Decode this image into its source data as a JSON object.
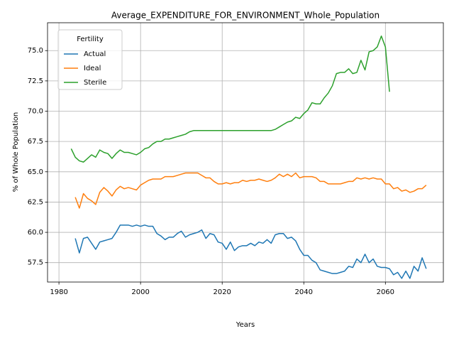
{
  "chart_data": {
    "type": "line",
    "title": "Average_EXPENDITURE_FOR_ENVIRONMENT_Whole_Population",
    "xlabel": "Years",
    "ylabel": "% of Whole Population",
    "legend_title": "Fertility",
    "legend": "upper left",
    "grid": true,
    "x": [
      1983,
      1984,
      1985,
      1986,
      1987,
      1988,
      1989,
      1990,
      1991,
      1992,
      1993,
      1994,
      1995,
      1996,
      1997,
      1998,
      1999,
      2000,
      2001,
      2002,
      2003,
      2004,
      2005,
      2006,
      2007,
      2008,
      2009,
      2010,
      2011,
      2012,
      2013,
      2014,
      2015,
      2016,
      2017,
      2018,
      2019,
      2020,
      2021,
      2022,
      2023,
      2024,
      2025,
      2026,
      2027,
      2028,
      2029,
      2030,
      2031,
      2032,
      2033,
      2034,
      2035,
      2036,
      2037,
      2038,
      2039,
      2040,
      2041,
      2042,
      2043,
      2044,
      2045,
      2046,
      2047,
      2048,
      2049,
      2050,
      2051,
      2052,
      2053,
      2054,
      2055,
      2056,
      2057,
      2058,
      2059,
      2060,
      2061,
      2062,
      2063,
      2064,
      2065,
      2066,
      2067,
      2068,
      2069,
      2070
    ],
    "series": [
      {
        "name": "Actual",
        "color": "#1f77b4",
        "values": [
          null,
          59.5,
          58.3,
          59.5,
          59.6,
          59.1,
          58.6,
          59.2,
          59.3,
          59.4,
          59.5,
          60.0,
          60.6,
          60.6,
          60.6,
          60.5,
          60.6,
          60.5,
          60.6,
          60.5,
          60.5,
          59.9,
          59.7,
          59.4,
          59.6,
          59.6,
          59.9,
          60.1,
          59.6,
          59.8,
          59.9,
          60.0,
          60.2,
          59.5,
          59.9,
          59.8,
          59.2,
          59.1,
          58.6,
          59.2,
          58.5,
          58.8,
          58.9,
          58.9,
          59.1,
          58.9,
          59.2,
          59.1,
          59.4,
          59.1,
          59.8,
          59.9,
          59.9,
          59.5,
          59.6,
          59.3,
          58.6,
          58.1,
          58.1,
          57.7,
          57.5,
          56.9,
          56.8,
          56.7,
          56.6,
          56.6,
          56.7,
          56.8,
          57.2,
          57.1,
          57.8,
          57.5,
          58.2,
          57.5,
          57.8,
          57.2,
          57.1,
          57.1,
          57.0,
          56.5,
          56.7,
          56.2,
          56.8,
          56.2,
          57.2,
          56.8,
          57.9,
          57.0
        ]
      },
      {
        "name": "Ideal",
        "color": "#ff7f0e",
        "values": [
          null,
          62.9,
          62.0,
          63.2,
          62.8,
          62.6,
          62.3,
          63.3,
          63.7,
          63.4,
          63.0,
          63.5,
          63.8,
          63.6,
          63.7,
          63.6,
          63.5,
          63.9,
          64.1,
          64.3,
          64.4,
          64.4,
          64.4,
          64.6,
          64.6,
          64.6,
          64.7,
          64.8,
          64.9,
          64.9,
          64.9,
          64.9,
          64.7,
          64.5,
          64.5,
          64.2,
          64.0,
          64.0,
          64.1,
          64.0,
          64.1,
          64.1,
          64.3,
          64.2,
          64.3,
          64.3,
          64.4,
          64.3,
          64.2,
          64.3,
          64.5,
          64.8,
          64.6,
          64.8,
          64.6,
          64.9,
          64.5,
          64.6,
          64.6,
          64.6,
          64.5,
          64.2,
          64.2,
          64.0,
          64.0,
          64.0,
          64.0,
          64.1,
          64.2,
          64.2,
          64.5,
          64.4,
          64.5,
          64.4,
          64.5,
          64.4,
          64.4,
          64.0,
          64.0,
          63.6,
          63.7,
          63.4,
          63.5,
          63.3,
          63.4,
          63.6,
          63.6,
          63.9
        ]
      },
      {
        "name": "Sterile",
        "color": "#2ca02c",
        "values": [
          66.9,
          66.2,
          65.9,
          65.8,
          66.1,
          66.4,
          66.2,
          66.8,
          66.6,
          66.5,
          66.1,
          66.5,
          66.8,
          66.6,
          66.6,
          66.5,
          66.4,
          66.6,
          66.9,
          67.0,
          67.3,
          67.5,
          67.5,
          67.7,
          67.7,
          67.8,
          67.9,
          68.0,
          68.1,
          68.3,
          68.4,
          68.4,
          68.4,
          68.4,
          68.4,
          68.4,
          68.4,
          68.4,
          68.4,
          68.4,
          68.4,
          68.4,
          68.4,
          68.4,
          68.4,
          68.4,
          68.4,
          68.4,
          68.4,
          68.4,
          68.5,
          68.7,
          68.9,
          69.1,
          69.2,
          69.5,
          69.4,
          69.8,
          70.1,
          70.7,
          70.6,
          70.6,
          71.1,
          71.5,
          72.1,
          73.1,
          73.2,
          73.2,
          73.5,
          73.1,
          73.2,
          74.2,
          73.4,
          74.9,
          75.0,
          75.3,
          76.2,
          75.3,
          71.6,
          null,
          null,
          null,
          null,
          null,
          null,
          null,
          null,
          null
        ]
      }
    ],
    "xlim": [
      1977.2,
      2074.2
    ],
    "xticks": [
      1980,
      2000,
      2020,
      2040,
      2060
    ],
    "ylim": [
      55.9,
      77.3
    ],
    "yticks": [
      57.5,
      {
        "value": 60,
        "label": "60.0"
      },
      62.5,
      {
        "value": 65,
        "label": "65.0"
      },
      67.5,
      {
        "value": 70,
        "label": "70.0"
      },
      72.5,
      {
        "value": 75,
        "label": "75.0"
      }
    ]
  }
}
